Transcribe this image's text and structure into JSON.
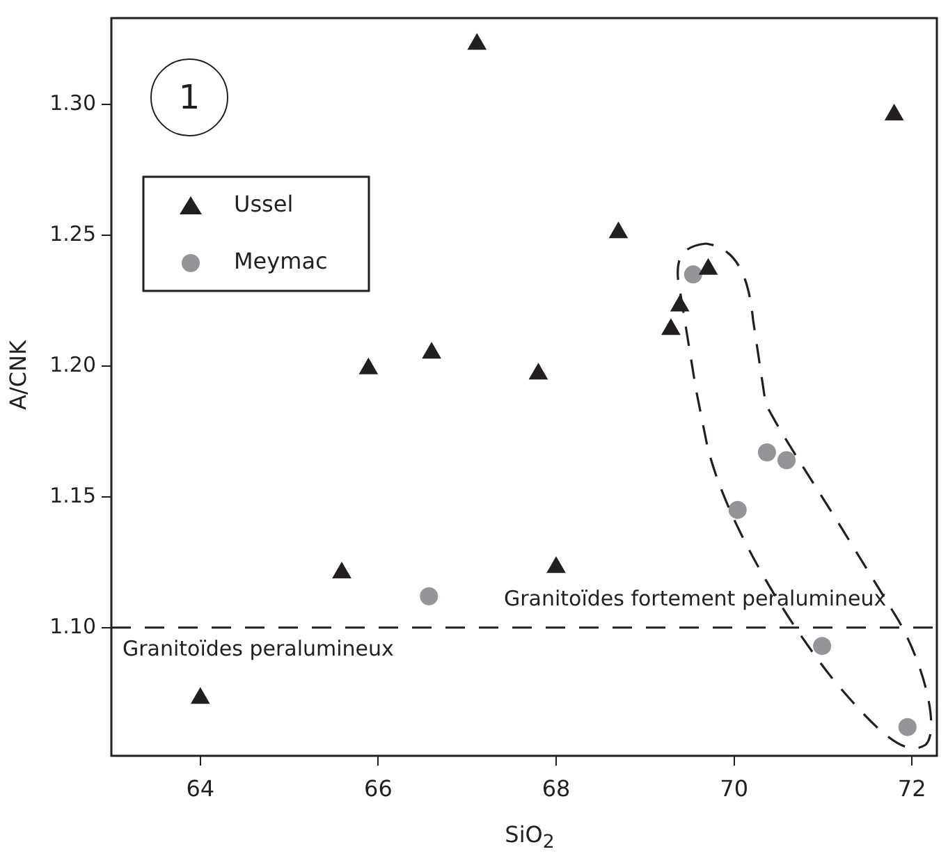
{
  "chart_data": {
    "type": "scatter",
    "xlabel": "SiO$_{2}$",
    "ylabel": "A/CNK",
    "xlim": [
      63.0,
      72.28
    ],
    "ylim": [
      1.051,
      1.333
    ],
    "xticks": [
      64,
      66,
      68,
      70,
      72
    ],
    "yticks": [
      {
        "value": 1.1,
        "label": "1.10"
      },
      {
        "value": 1.15,
        "label": "1.15"
      },
      {
        "value": 1.2,
        "label": "1.20"
      },
      {
        "value": 1.25,
        "label": "1.25"
      },
      {
        "value": 1.3,
        "label": "1.30"
      }
    ],
    "grid": false,
    "legend": "top left",
    "series": [
      {
        "name": "Ussel",
        "color": "#231f20",
        "marker": "triangle",
        "x": [
          64.0,
          65.59,
          65.89,
          66.6,
          67.11,
          67.8,
          68.0,
          68.7,
          69.29,
          69.39,
          69.71,
          71.8
        ],
        "values": [
          1.073,
          1.121,
          1.199,
          1.205,
          1.323,
          1.197,
          1.123,
          1.251,
          1.214,
          1.223,
          1.237,
          1.296
        ]
      },
      {
        "name": "Meymac",
        "color": "#939598",
        "marker": "circle",
        "x": [
          66.57,
          69.54,
          70.04,
          70.37,
          70.59,
          70.99,
          71.95
        ],
        "values": [
          1.112,
          1.235,
          1.145,
          1.167,
          1.164,
          1.093,
          1.062
        ]
      }
    ],
    "ref_lines": [
      {
        "axis": "y",
        "value": 1.1,
        "line_style": "dashed",
        "color": "#231f20"
      }
    ],
    "annotations": [
      "1",
      "Granitoïdes peralumineux",
      "Granitoïdes fortement peralumineux"
    ]
  }
}
